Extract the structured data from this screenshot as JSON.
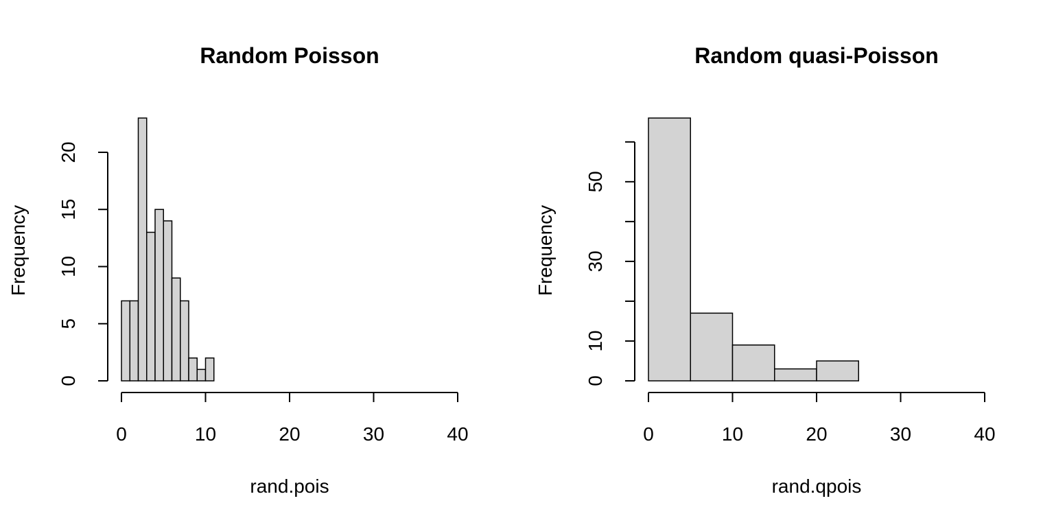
{
  "chart_data": [
    {
      "type": "bar",
      "subtype": "histogram",
      "title": "Random Poisson",
      "xlabel": "rand.pois",
      "ylabel": "Frequency",
      "xlim": [
        0,
        40
      ],
      "ylim": [
        0,
        23
      ],
      "xticks": [
        0,
        10,
        20,
        30,
        40
      ],
      "yticks": [
        0,
        5,
        10,
        15,
        20
      ],
      "bar_color": "#d3d3d3",
      "bins": [
        {
          "x0": 0,
          "x1": 1,
          "count": 7
        },
        {
          "x0": 1,
          "x1": 2,
          "count": 7
        },
        {
          "x0": 2,
          "x1": 3,
          "count": 23
        },
        {
          "x0": 3,
          "x1": 4,
          "count": 13
        },
        {
          "x0": 4,
          "x1": 5,
          "count": 15
        },
        {
          "x0": 5,
          "x1": 6,
          "count": 14
        },
        {
          "x0": 6,
          "x1": 7,
          "count": 9
        },
        {
          "x0": 7,
          "x1": 8,
          "count": 7
        },
        {
          "x0": 8,
          "x1": 9,
          "count": 2
        },
        {
          "x0": 9,
          "x1": 10,
          "count": 1
        },
        {
          "x0": 10,
          "x1": 11,
          "count": 2
        }
      ]
    },
    {
      "type": "bar",
      "subtype": "histogram",
      "title": "Random quasi-Poisson",
      "xlabel": "rand.qpois",
      "ylabel": "Frequency",
      "xlim": [
        0,
        40
      ],
      "ylim": [
        0,
        66
      ],
      "xticks": [
        0,
        10,
        20,
        30,
        40
      ],
      "yticks": [
        0,
        10,
        20,
        30,
        40,
        50,
        60
      ],
      "ytick_labels": [
        "0",
        "10",
        "",
        "30",
        "",
        "50",
        ""
      ],
      "bar_color": "#d3d3d3",
      "bins": [
        {
          "x0": 0,
          "x1": 5,
          "count": 66
        },
        {
          "x0": 5,
          "x1": 10,
          "count": 17
        },
        {
          "x0": 10,
          "x1": 15,
          "count": 9
        },
        {
          "x0": 15,
          "x1": 20,
          "count": 3
        },
        {
          "x0": 20,
          "x1": 25,
          "count": 5
        }
      ]
    }
  ]
}
